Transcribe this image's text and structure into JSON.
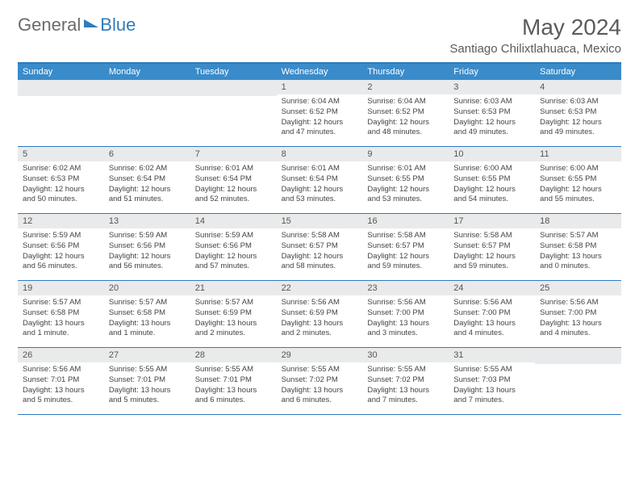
{
  "logo": {
    "text1": "General",
    "text2": "Blue"
  },
  "title": "May 2024",
  "location": "Santiago Chilixtlahuaca, Mexico",
  "colors": {
    "header_bg": "#3a8bc9",
    "border": "#2f7bbf",
    "daynum_bg": "#e9eaeb",
    "text": "#444444",
    "title_text": "#5b5b5b"
  },
  "weekdays": [
    "Sunday",
    "Monday",
    "Tuesday",
    "Wednesday",
    "Thursday",
    "Friday",
    "Saturday"
  ],
  "weeks": [
    [
      null,
      null,
      null,
      {
        "n": "1",
        "sr": "6:04 AM",
        "ss": "6:52 PM",
        "dl": "12 hours and 47 minutes."
      },
      {
        "n": "2",
        "sr": "6:04 AM",
        "ss": "6:52 PM",
        "dl": "12 hours and 48 minutes."
      },
      {
        "n": "3",
        "sr": "6:03 AM",
        "ss": "6:53 PM",
        "dl": "12 hours and 49 minutes."
      },
      {
        "n": "4",
        "sr": "6:03 AM",
        "ss": "6:53 PM",
        "dl": "12 hours and 49 minutes."
      }
    ],
    [
      {
        "n": "5",
        "sr": "6:02 AM",
        "ss": "6:53 PM",
        "dl": "12 hours and 50 minutes."
      },
      {
        "n": "6",
        "sr": "6:02 AM",
        "ss": "6:54 PM",
        "dl": "12 hours and 51 minutes."
      },
      {
        "n": "7",
        "sr": "6:01 AM",
        "ss": "6:54 PM",
        "dl": "12 hours and 52 minutes."
      },
      {
        "n": "8",
        "sr": "6:01 AM",
        "ss": "6:54 PM",
        "dl": "12 hours and 53 minutes."
      },
      {
        "n": "9",
        "sr": "6:01 AM",
        "ss": "6:55 PM",
        "dl": "12 hours and 53 minutes."
      },
      {
        "n": "10",
        "sr": "6:00 AM",
        "ss": "6:55 PM",
        "dl": "12 hours and 54 minutes."
      },
      {
        "n": "11",
        "sr": "6:00 AM",
        "ss": "6:55 PM",
        "dl": "12 hours and 55 minutes."
      }
    ],
    [
      {
        "n": "12",
        "sr": "5:59 AM",
        "ss": "6:56 PM",
        "dl": "12 hours and 56 minutes."
      },
      {
        "n": "13",
        "sr": "5:59 AM",
        "ss": "6:56 PM",
        "dl": "12 hours and 56 minutes."
      },
      {
        "n": "14",
        "sr": "5:59 AM",
        "ss": "6:56 PM",
        "dl": "12 hours and 57 minutes."
      },
      {
        "n": "15",
        "sr": "5:58 AM",
        "ss": "6:57 PM",
        "dl": "12 hours and 58 minutes."
      },
      {
        "n": "16",
        "sr": "5:58 AM",
        "ss": "6:57 PM",
        "dl": "12 hours and 59 minutes."
      },
      {
        "n": "17",
        "sr": "5:58 AM",
        "ss": "6:57 PM",
        "dl": "12 hours and 59 minutes."
      },
      {
        "n": "18",
        "sr": "5:57 AM",
        "ss": "6:58 PM",
        "dl": "13 hours and 0 minutes."
      }
    ],
    [
      {
        "n": "19",
        "sr": "5:57 AM",
        "ss": "6:58 PM",
        "dl": "13 hours and 1 minute."
      },
      {
        "n": "20",
        "sr": "5:57 AM",
        "ss": "6:58 PM",
        "dl": "13 hours and 1 minute."
      },
      {
        "n": "21",
        "sr": "5:57 AM",
        "ss": "6:59 PM",
        "dl": "13 hours and 2 minutes."
      },
      {
        "n": "22",
        "sr": "5:56 AM",
        "ss": "6:59 PM",
        "dl": "13 hours and 2 minutes."
      },
      {
        "n": "23",
        "sr": "5:56 AM",
        "ss": "7:00 PM",
        "dl": "13 hours and 3 minutes."
      },
      {
        "n": "24",
        "sr": "5:56 AM",
        "ss": "7:00 PM",
        "dl": "13 hours and 4 minutes."
      },
      {
        "n": "25",
        "sr": "5:56 AM",
        "ss": "7:00 PM",
        "dl": "13 hours and 4 minutes."
      }
    ],
    [
      {
        "n": "26",
        "sr": "5:56 AM",
        "ss": "7:01 PM",
        "dl": "13 hours and 5 minutes."
      },
      {
        "n": "27",
        "sr": "5:55 AM",
        "ss": "7:01 PM",
        "dl": "13 hours and 5 minutes."
      },
      {
        "n": "28",
        "sr": "5:55 AM",
        "ss": "7:01 PM",
        "dl": "13 hours and 6 minutes."
      },
      {
        "n": "29",
        "sr": "5:55 AM",
        "ss": "7:02 PM",
        "dl": "13 hours and 6 minutes."
      },
      {
        "n": "30",
        "sr": "5:55 AM",
        "ss": "7:02 PM",
        "dl": "13 hours and 7 minutes."
      },
      {
        "n": "31",
        "sr": "5:55 AM",
        "ss": "7:03 PM",
        "dl": "13 hours and 7 minutes."
      },
      null
    ]
  ],
  "labels": {
    "sunrise": "Sunrise:",
    "sunset": "Sunset:",
    "daylight": "Daylight:"
  }
}
